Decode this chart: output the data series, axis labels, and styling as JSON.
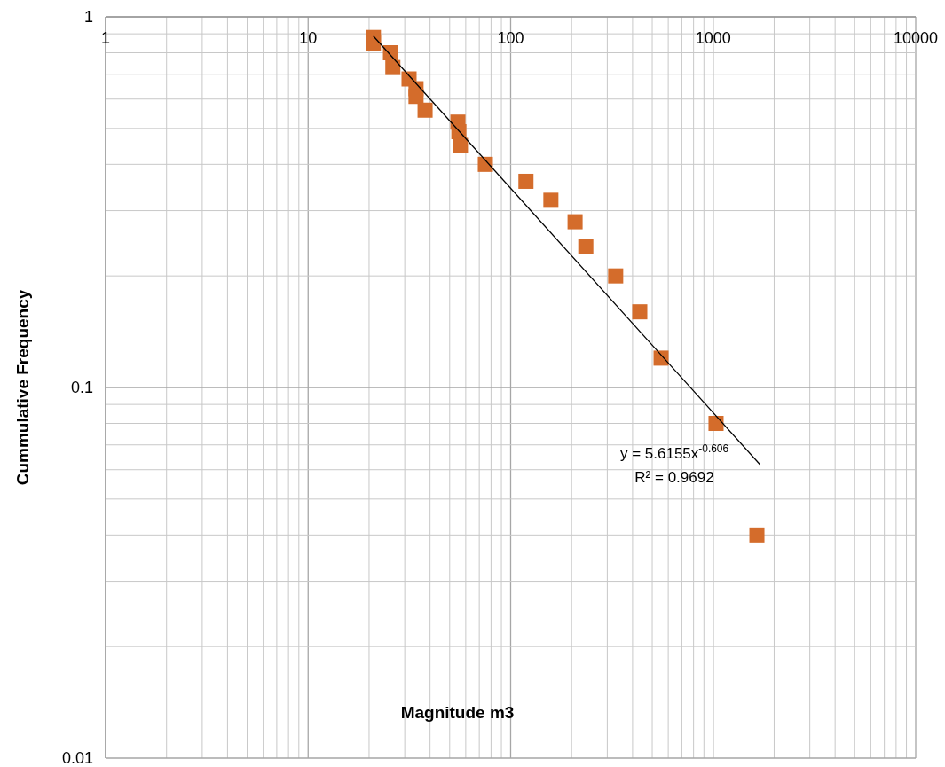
{
  "chart_data": {
    "type": "scatter",
    "xlabel": "Magnitude m3",
    "ylabel": "Cummulative Frequency",
    "log": "xy",
    "grid": true,
    "xlim": [
      1,
      10000
    ],
    "ylim": [
      0.01,
      1
    ],
    "xticks": [
      1,
      {
        "value": 2,
        "label": null
      },
      {
        "value": 3,
        "label": null
      },
      {
        "value": 4,
        "label": null
      },
      {
        "value": 5,
        "label": null
      },
      {
        "value": 6,
        "label": null
      },
      {
        "value": 7,
        "label": null
      },
      {
        "value": 8,
        "label": null
      },
      {
        "value": 9,
        "label": null
      },
      10,
      {
        "value": 20,
        "label": null
      },
      {
        "value": 30,
        "label": null
      },
      {
        "value": 40,
        "label": null
      },
      {
        "value": 50,
        "label": null
      },
      {
        "value": 60,
        "label": null
      },
      {
        "value": 70,
        "label": null
      },
      {
        "value": 80,
        "label": null
      },
      {
        "value": 90,
        "label": null
      },
      100,
      {
        "value": 200,
        "label": null
      },
      {
        "value": 300,
        "label": null
      },
      {
        "value": 400,
        "label": null
      },
      {
        "value": 500,
        "label": null
      },
      {
        "value": 600,
        "label": null
      },
      {
        "value": 700,
        "label": null
      },
      {
        "value": 800,
        "label": null
      },
      {
        "value": 900,
        "label": null
      },
      1000,
      {
        "value": 2000,
        "label": null
      },
      {
        "value": 3000,
        "label": null
      },
      {
        "value": 4000,
        "label": null
      },
      {
        "value": 5000,
        "label": null
      },
      {
        "value": 6000,
        "label": null
      },
      {
        "value": 7000,
        "label": null
      },
      {
        "value": 8000,
        "label": null
      },
      {
        "value": 9000,
        "label": null
      },
      10000
    ],
    "yticks": [
      0.01,
      {
        "value": 0.02,
        "label": null
      },
      {
        "value": 0.03,
        "label": null
      },
      {
        "value": 0.04,
        "label": null
      },
      {
        "value": 0.05,
        "label": null
      },
      {
        "value": 0.06,
        "label": null
      },
      {
        "value": 0.07,
        "label": null
      },
      {
        "value": 0.08,
        "label": null
      },
      {
        "value": 0.09,
        "label": null
      },
      0.1,
      {
        "value": 0.2,
        "label": null
      },
      {
        "value": 0.3,
        "label": null
      },
      {
        "value": 0.4,
        "label": null
      },
      {
        "value": 0.5,
        "label": null
      },
      {
        "value": 0.6,
        "label": null
      },
      {
        "value": 0.7,
        "label": null
      },
      {
        "value": 0.8,
        "label": null
      },
      {
        "value": 0.9,
        "label": null
      },
      1
    ],
    "series": [
      {
        "marker": "square",
        "color": "#d46c2b",
        "x": [
          21,
          21,
          25.5,
          26.2,
          31.5,
          34.1,
          34.1,
          37.8,
          54.9,
          55.5,
          56.5,
          75,
          119,
          158,
          208,
          235,
          330,
          434,
          553,
          1033,
          1644
        ],
        "values": [
          0.88,
          0.85,
          0.8,
          0.73,
          0.68,
          0.64,
          0.61,
          0.56,
          0.52,
          0.49,
          0.45,
          0.4,
          0.36,
          0.32,
          0.28,
          0.24,
          0.2,
          0.16,
          0.12,
          0.08,
          0.04
        ]
      },
      {
        "type": "line",
        "color": "#000000",
        "x": [
          21,
          1700
        ],
        "values": [
          0.887,
          0.062
        ]
      }
    ],
    "annotations": [
      "y = 5.6155x$^{-0.606}$",
      "R² = 0.9692"
    ]
  }
}
